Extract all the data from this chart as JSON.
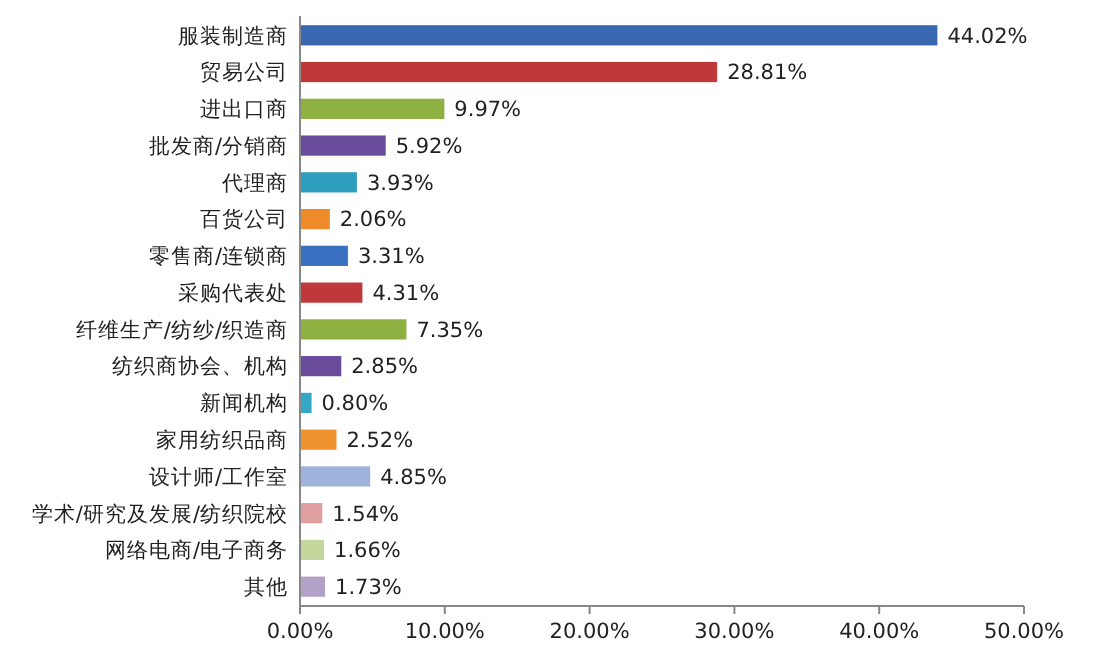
{
  "chart_data": {
    "type": "bar",
    "orientation": "horizontal",
    "categories": [
      "服装制造商",
      "贸易公司",
      "进出口商",
      "批发商/分销商",
      "代理商",
      "百货公司",
      "零售商/连锁商",
      "采购代表处",
      "纤维生产/纺纱/织造商",
      "纺织商协会、机构",
      "新闻机构",
      "家用纺织品商",
      "设计师/工作室",
      "学术/研究及发展/纺织院校",
      "网络电商/电子商务",
      "其他"
    ],
    "values": [
      44.02,
      28.81,
      9.97,
      5.92,
      3.93,
      2.06,
      3.31,
      4.31,
      7.35,
      2.85,
      0.8,
      2.52,
      4.85,
      1.54,
      1.66,
      1.73
    ],
    "value_labels": [
      "44.02%",
      "28.81%",
      "9.97%",
      "5.92%",
      "3.93%",
      "2.06%",
      "3.31%",
      "4.31%",
      "7.35%",
      "2.85%",
      "0.80%",
      "2.52%",
      "4.85%",
      "1.54%",
      "1.66%",
      "1.73%"
    ],
    "colors": [
      "#3a68b0",
      "#c0393a",
      "#8db040",
      "#6a4c9c",
      "#2f9fbf",
      "#ee8a2a",
      "#3a70c0",
      "#c0393a",
      "#8db040",
      "#6a4c9c",
      "#35a8c8",
      "#f0922e",
      "#9db3dc",
      "#e0a0a0",
      "#c3d69b",
      "#b3a2c7"
    ],
    "xlim": [
      0,
      50
    ],
    "xticks": [
      {
        "value": 0,
        "label": "0.00%"
      },
      {
        "value": 10,
        "label": "10.00%"
      },
      {
        "value": 20,
        "label": "20.00%"
      },
      {
        "value": 30,
        "label": "30.00%"
      },
      {
        "value": 40,
        "label": "40.00%"
      },
      {
        "value": 50,
        "label": "50.00%"
      }
    ],
    "grid": false
  }
}
